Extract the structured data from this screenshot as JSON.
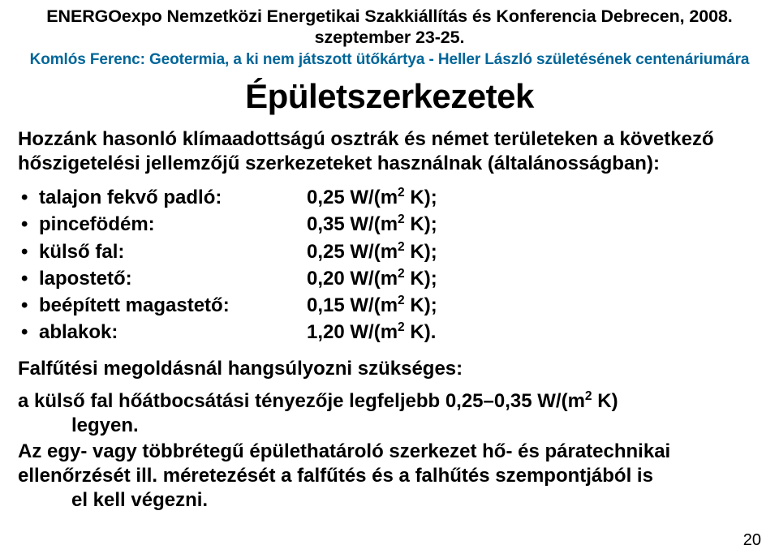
{
  "colors": {
    "text": "#000000",
    "accent": "#006699",
    "background": "#ffffff"
  },
  "typography": {
    "family": "Arial",
    "header1_size_pt": 16,
    "header2_size_pt": 14,
    "title_size_pt": 32,
    "body_size_pt": 18,
    "body_weight": "bold"
  },
  "header": {
    "line1": "ENERGOexpo Nemzetközi Energetikai Szakkiállítás és Konferencia Debrecen, 2008. szeptember 23-25.",
    "line2": "Komlós Ferenc: Geotermia, a ki nem játszott ütőkártya - Heller László születésének centenáriumára"
  },
  "title": "Épületszerkezetek",
  "intro": "Hozzánk hasonló klímaadottságú osztrák és német területeken a következő hőszigetelési jellemzőjű szerkezeteket használnak (általánosságban):",
  "list": {
    "bullet": "•",
    "items": [
      {
        "label": "talajon fekvő padló:",
        "value": "0,25 W/(m",
        "exp": "2",
        "tail": " K);"
      },
      {
        "label": "pincefödém:",
        "value": "0,35 W/(m",
        "exp": "2",
        "tail": " K);"
      },
      {
        "label": "külső fal:",
        "value": "0,25 W/(m",
        "exp": "2",
        "tail": " K);"
      },
      {
        "label": "lapostető:",
        "value": "0,20 W/(m",
        "exp": "2",
        "tail": " K);"
      },
      {
        "label": "beépített magastető:",
        "value": "0,15 W/(m",
        "exp": "2",
        "tail": " K);"
      },
      {
        "label": "ablakok:",
        "value": "1,20 W/(m",
        "exp": "2",
        "tail": " K)."
      }
    ]
  },
  "para1": "Falfűtési megoldásnál hangsúlyozni szükséges:",
  "para2": {
    "line1_pre": "a külső fal hőátbocsátási tényezője legfeljebb 0,25–0,35 W/(m",
    "exp": "2",
    "line1_post": " K)",
    "line2": "legyen."
  },
  "para3": {
    "line1": "Az egy- vagy többrétegű épülethatároló szerkezet hő- és páratechnikai",
    "line2": "ellenőrzését ill. méretezését a falfűtés és a falhűtés szempontjából is",
    "line3": "el kell végezni."
  },
  "page_number": "20"
}
